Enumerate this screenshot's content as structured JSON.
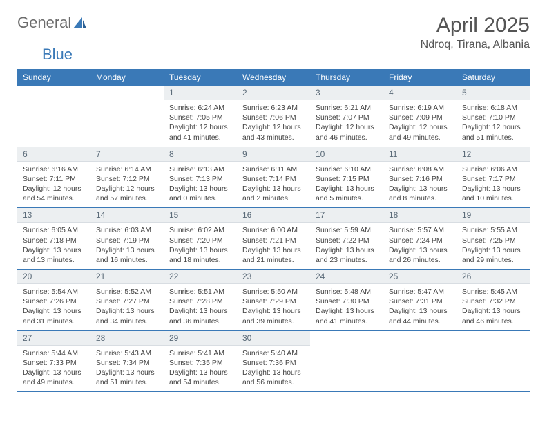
{
  "logo": {
    "word1": "General",
    "word2": "Blue"
  },
  "title": "April 2025",
  "location": "Ndroq, Tirana, Albania",
  "colors": {
    "header_bg": "#3a79b7",
    "header_text": "#ffffff",
    "daynum_bg": "#eceff1",
    "daynum_text": "#5a6a78",
    "row_border": "#3a79b7",
    "body_text": "#444444",
    "page_bg": "#ffffff"
  },
  "typography": {
    "title_fontsize": 30,
    "location_fontsize": 16,
    "dayheader_fontsize": 12,
    "daynum_fontsize": 12,
    "cell_fontsize": 10.5
  },
  "day_headers": [
    "Sunday",
    "Monday",
    "Tuesday",
    "Wednesday",
    "Thursday",
    "Friday",
    "Saturday"
  ],
  "weeks": [
    [
      {
        "empty": true
      },
      {
        "empty": true
      },
      {
        "n": "1",
        "sr": "6:24 AM",
        "ss": "7:05 PM",
        "dl": "12 hours and 41 minutes."
      },
      {
        "n": "2",
        "sr": "6:23 AM",
        "ss": "7:06 PM",
        "dl": "12 hours and 43 minutes."
      },
      {
        "n": "3",
        "sr": "6:21 AM",
        "ss": "7:07 PM",
        "dl": "12 hours and 46 minutes."
      },
      {
        "n": "4",
        "sr": "6:19 AM",
        "ss": "7:09 PM",
        "dl": "12 hours and 49 minutes."
      },
      {
        "n": "5",
        "sr": "6:18 AM",
        "ss": "7:10 PM",
        "dl": "12 hours and 51 minutes."
      }
    ],
    [
      {
        "n": "6",
        "sr": "6:16 AM",
        "ss": "7:11 PM",
        "dl": "12 hours and 54 minutes."
      },
      {
        "n": "7",
        "sr": "6:14 AM",
        "ss": "7:12 PM",
        "dl": "12 hours and 57 minutes."
      },
      {
        "n": "8",
        "sr": "6:13 AM",
        "ss": "7:13 PM",
        "dl": "13 hours and 0 minutes."
      },
      {
        "n": "9",
        "sr": "6:11 AM",
        "ss": "7:14 PM",
        "dl": "13 hours and 2 minutes."
      },
      {
        "n": "10",
        "sr": "6:10 AM",
        "ss": "7:15 PM",
        "dl": "13 hours and 5 minutes."
      },
      {
        "n": "11",
        "sr": "6:08 AM",
        "ss": "7:16 PM",
        "dl": "13 hours and 8 minutes."
      },
      {
        "n": "12",
        "sr": "6:06 AM",
        "ss": "7:17 PM",
        "dl": "13 hours and 10 minutes."
      }
    ],
    [
      {
        "n": "13",
        "sr": "6:05 AM",
        "ss": "7:18 PM",
        "dl": "13 hours and 13 minutes."
      },
      {
        "n": "14",
        "sr": "6:03 AM",
        "ss": "7:19 PM",
        "dl": "13 hours and 16 minutes."
      },
      {
        "n": "15",
        "sr": "6:02 AM",
        "ss": "7:20 PM",
        "dl": "13 hours and 18 minutes."
      },
      {
        "n": "16",
        "sr": "6:00 AM",
        "ss": "7:21 PM",
        "dl": "13 hours and 21 minutes."
      },
      {
        "n": "17",
        "sr": "5:59 AM",
        "ss": "7:22 PM",
        "dl": "13 hours and 23 minutes."
      },
      {
        "n": "18",
        "sr": "5:57 AM",
        "ss": "7:24 PM",
        "dl": "13 hours and 26 minutes."
      },
      {
        "n": "19",
        "sr": "5:55 AM",
        "ss": "7:25 PM",
        "dl": "13 hours and 29 minutes."
      }
    ],
    [
      {
        "n": "20",
        "sr": "5:54 AM",
        "ss": "7:26 PM",
        "dl": "13 hours and 31 minutes."
      },
      {
        "n": "21",
        "sr": "5:52 AM",
        "ss": "7:27 PM",
        "dl": "13 hours and 34 minutes."
      },
      {
        "n": "22",
        "sr": "5:51 AM",
        "ss": "7:28 PM",
        "dl": "13 hours and 36 minutes."
      },
      {
        "n": "23",
        "sr": "5:50 AM",
        "ss": "7:29 PM",
        "dl": "13 hours and 39 minutes."
      },
      {
        "n": "24",
        "sr": "5:48 AM",
        "ss": "7:30 PM",
        "dl": "13 hours and 41 minutes."
      },
      {
        "n": "25",
        "sr": "5:47 AM",
        "ss": "7:31 PM",
        "dl": "13 hours and 44 minutes."
      },
      {
        "n": "26",
        "sr": "5:45 AM",
        "ss": "7:32 PM",
        "dl": "13 hours and 46 minutes."
      }
    ],
    [
      {
        "n": "27",
        "sr": "5:44 AM",
        "ss": "7:33 PM",
        "dl": "13 hours and 49 minutes."
      },
      {
        "n": "28",
        "sr": "5:43 AM",
        "ss": "7:34 PM",
        "dl": "13 hours and 51 minutes."
      },
      {
        "n": "29",
        "sr": "5:41 AM",
        "ss": "7:35 PM",
        "dl": "13 hours and 54 minutes."
      },
      {
        "n": "30",
        "sr": "5:40 AM",
        "ss": "7:36 PM",
        "dl": "13 hours and 56 minutes."
      },
      {
        "empty": true
      },
      {
        "empty": true
      },
      {
        "empty": true
      }
    ]
  ],
  "labels": {
    "sunrise": "Sunrise: ",
    "sunset": "Sunset: ",
    "daylight": "Daylight: "
  }
}
